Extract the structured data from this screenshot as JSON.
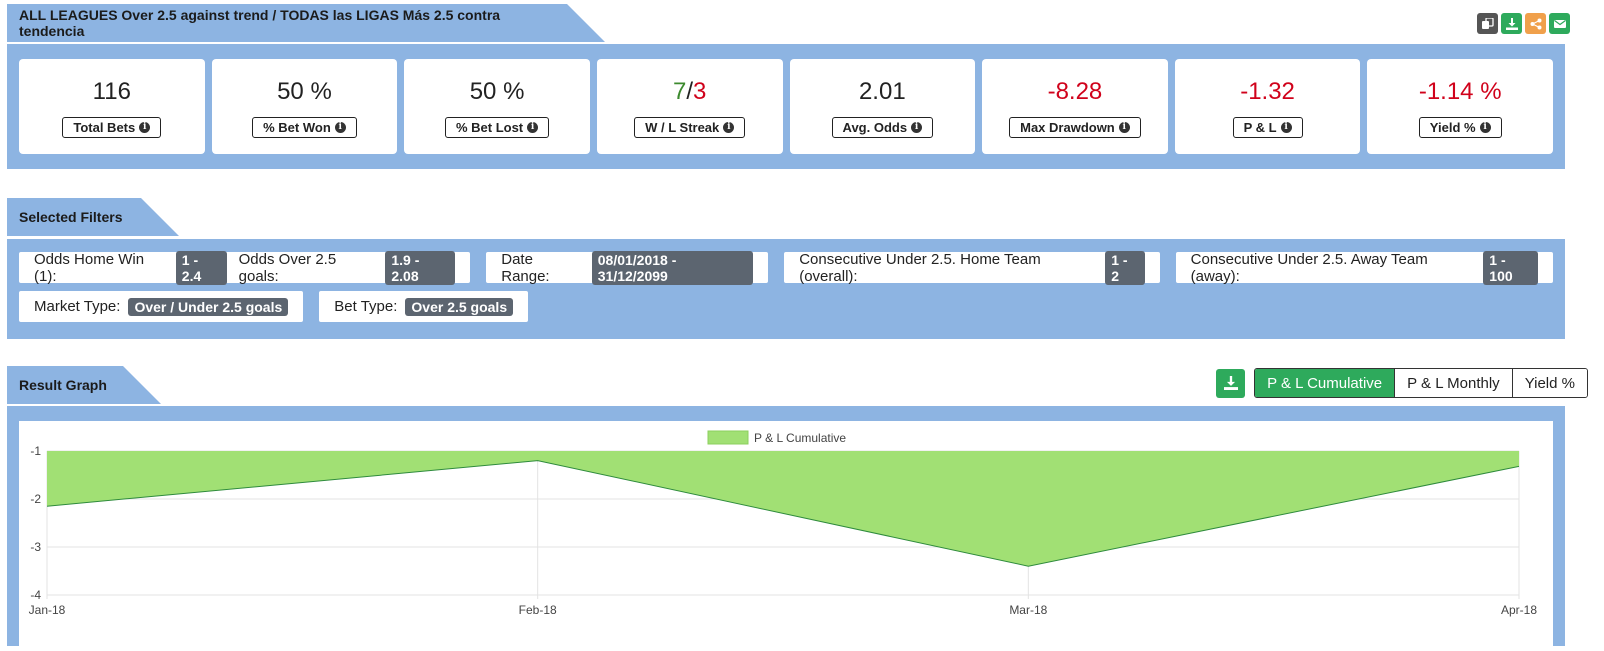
{
  "header": {
    "title": "ALL LEAGUES Over 2.5 against trend / TODAS las LIGAS Más 2.5 contra tendencia",
    "icons": [
      "copy-icon",
      "download-icon",
      "share-icon",
      "email-icon"
    ],
    "icon_colors": [
      "#555555",
      "#2eaa5c",
      "#f0a04b",
      "#2eaa5c"
    ]
  },
  "stats": [
    {
      "value": "116",
      "label": "Total Bets",
      "color": "#222222"
    },
    {
      "value": "50 %",
      "label": "% Bet Won",
      "color": "#222222"
    },
    {
      "value": "50 %",
      "label": "% Bet Lost",
      "color": "#222222"
    },
    {
      "value_won": "7",
      "value_sep": "/",
      "value_lost": "3",
      "label": "W / L Streak"
    },
    {
      "value": "2.01",
      "label": "Avg. Odds",
      "color": "#222222"
    },
    {
      "value": "-8.28",
      "label": "Max Drawdown",
      "color": "#d0021b"
    },
    {
      "value": "-1.32",
      "label": "P & L",
      "color": "#d0021b"
    },
    {
      "value": "-1.14 %",
      "label": "Yield %",
      "color": "#d0021b"
    }
  ],
  "filters_section": {
    "title": "Selected Filters",
    "rows": [
      [
        {
          "parts": [
            {
              "label": "Odds Home Win (1):",
              "value": "1 - 2.4"
            },
            {
              "label": "Odds Over 2.5 goals:",
              "value": "1.9 - 2.08"
            }
          ]
        },
        {
          "parts": [
            {
              "label": "Date Range:",
              "value": "08/01/2018 - 31/12/2099"
            }
          ]
        },
        {
          "parts": [
            {
              "label": "Consecutive Under 2.5. Home Team (overall):",
              "value": "1 - 2"
            }
          ]
        },
        {
          "parts": [
            {
              "label": "Consecutive Under 2.5. Away Team (away):",
              "value": "1 - 100"
            }
          ]
        }
      ],
      [
        {
          "parts": [
            {
              "label": "Market Type:",
              "value": "Over / Under 2.5 goals"
            }
          ]
        },
        {
          "parts": [
            {
              "label": "Bet Type:",
              "value": "Over 2.5 goals"
            }
          ]
        }
      ]
    ]
  },
  "graph_section": {
    "title": "Result Graph",
    "buttons": [
      "P & L Cumulative",
      "P & L Monthly",
      "Yield %"
    ],
    "active_button": "P & L Cumulative"
  },
  "chart_data": {
    "type": "area",
    "x": [
      "Jan-18",
      "Feb-18",
      "Mar-18",
      "Apr-18"
    ],
    "series": [
      {
        "name": "P & L Cumulative",
        "values": [
          -2.15,
          -1.2,
          -3.4,
          -1.32
        ]
      }
    ],
    "ylim": [
      -4,
      -1
    ],
    "yticks": [
      "-1",
      "-2",
      "-3",
      "-4"
    ],
    "fill_color": "#a1e074",
    "line_color": "#2e8b3c",
    "legend": "top-center",
    "grid": true
  }
}
